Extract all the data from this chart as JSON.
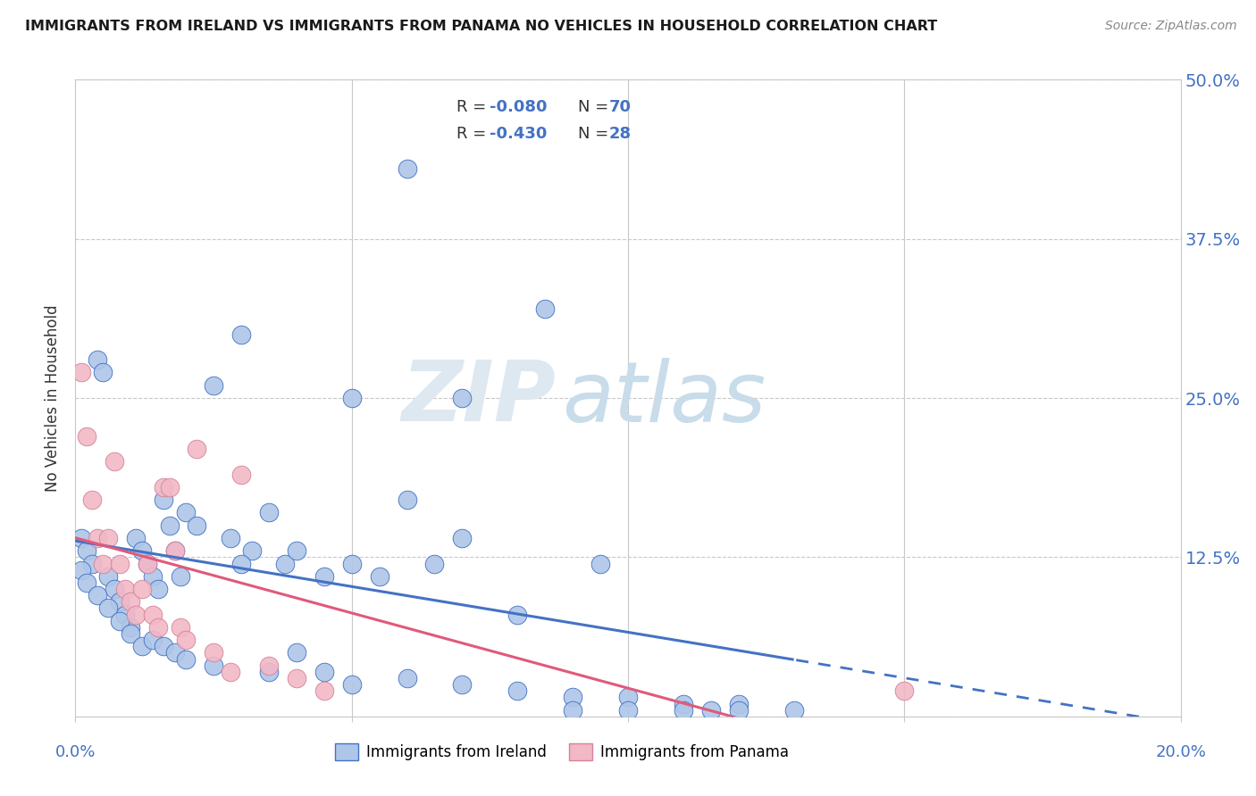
{
  "title": "IMMIGRANTS FROM IRELAND VS IMMIGRANTS FROM PANAMA NO VEHICLES IN HOUSEHOLD CORRELATION CHART",
  "source": "Source: ZipAtlas.com",
  "ylabel": "No Vehicles in Household",
  "legend_ireland": "Immigrants from Ireland",
  "legend_panama": "Immigrants from Panama",
  "R_ireland": -0.08,
  "N_ireland": 70,
  "R_panama": -0.43,
  "N_panama": 28,
  "color_ireland": "#aec6e8",
  "color_panama": "#f2b8c6",
  "line_color_ireland": "#4472c4",
  "line_color_panama": "#e05a7a",
  "background_color": "#ffffff",
  "watermark_zip": "ZIP",
  "watermark_atlas": "atlas",
  "ireland_x": [
    0.001,
    0.002,
    0.003,
    0.004,
    0.005,
    0.006,
    0.007,
    0.008,
    0.009,
    0.01,
    0.011,
    0.012,
    0.013,
    0.014,
    0.015,
    0.016,
    0.017,
    0.018,
    0.019,
    0.02,
    0.022,
    0.025,
    0.028,
    0.03,
    0.032,
    0.035,
    0.038,
    0.04,
    0.045,
    0.05,
    0.055,
    0.06,
    0.065,
    0.07,
    0.001,
    0.002,
    0.004,
    0.006,
    0.008,
    0.01,
    0.012,
    0.014,
    0.016,
    0.018,
    0.02,
    0.025,
    0.03,
    0.035,
    0.04,
    0.045,
    0.05,
    0.06,
    0.07,
    0.08,
    0.09,
    0.1,
    0.11,
    0.12,
    0.13,
    0.09,
    0.1,
    0.11,
    0.12,
    0.05,
    0.06,
    0.07,
    0.08,
    0.095,
    0.115,
    0.085
  ],
  "ireland_y": [
    0.14,
    0.13,
    0.12,
    0.28,
    0.27,
    0.11,
    0.1,
    0.09,
    0.08,
    0.07,
    0.14,
    0.13,
    0.12,
    0.11,
    0.1,
    0.17,
    0.15,
    0.13,
    0.11,
    0.16,
    0.15,
    0.26,
    0.14,
    0.3,
    0.13,
    0.16,
    0.12,
    0.13,
    0.11,
    0.12,
    0.11,
    0.17,
    0.12,
    0.14,
    0.115,
    0.105,
    0.095,
    0.085,
    0.075,
    0.065,
    0.055,
    0.06,
    0.055,
    0.05,
    0.045,
    0.04,
    0.12,
    0.035,
    0.05,
    0.035,
    0.025,
    0.03,
    0.025,
    0.02,
    0.015,
    0.015,
    0.01,
    0.01,
    0.005,
    0.005,
    0.005,
    0.005,
    0.005,
    0.25,
    0.43,
    0.25,
    0.08,
    0.12,
    0.005,
    0.32
  ],
  "panama_x": [
    0.001,
    0.002,
    0.003,
    0.004,
    0.005,
    0.006,
    0.007,
    0.008,
    0.009,
    0.01,
    0.011,
    0.012,
    0.013,
    0.014,
    0.015,
    0.016,
    0.017,
    0.018,
    0.019,
    0.02,
    0.022,
    0.025,
    0.028,
    0.04,
    0.035,
    0.03,
    0.045,
    0.15
  ],
  "panama_y": [
    0.27,
    0.22,
    0.17,
    0.14,
    0.12,
    0.14,
    0.2,
    0.12,
    0.1,
    0.09,
    0.08,
    0.1,
    0.12,
    0.08,
    0.07,
    0.18,
    0.18,
    0.13,
    0.07,
    0.06,
    0.21,
    0.05,
    0.035,
    0.03,
    0.04,
    0.19,
    0.02,
    0.02
  ],
  "xlim": [
    0.0,
    0.2
  ],
  "ylim": [
    0.0,
    0.5
  ],
  "yticks": [
    0.0,
    0.125,
    0.25,
    0.375,
    0.5
  ],
  "ytick_labels": [
    "",
    "12.5%",
    "25.0%",
    "37.5%",
    "50.0%"
  ],
  "xtick_labels_show": [
    "0.0%",
    "20.0%"
  ],
  "trend_ireland_solid_end": 0.13,
  "trend_ireland_dashed_end": 0.2
}
